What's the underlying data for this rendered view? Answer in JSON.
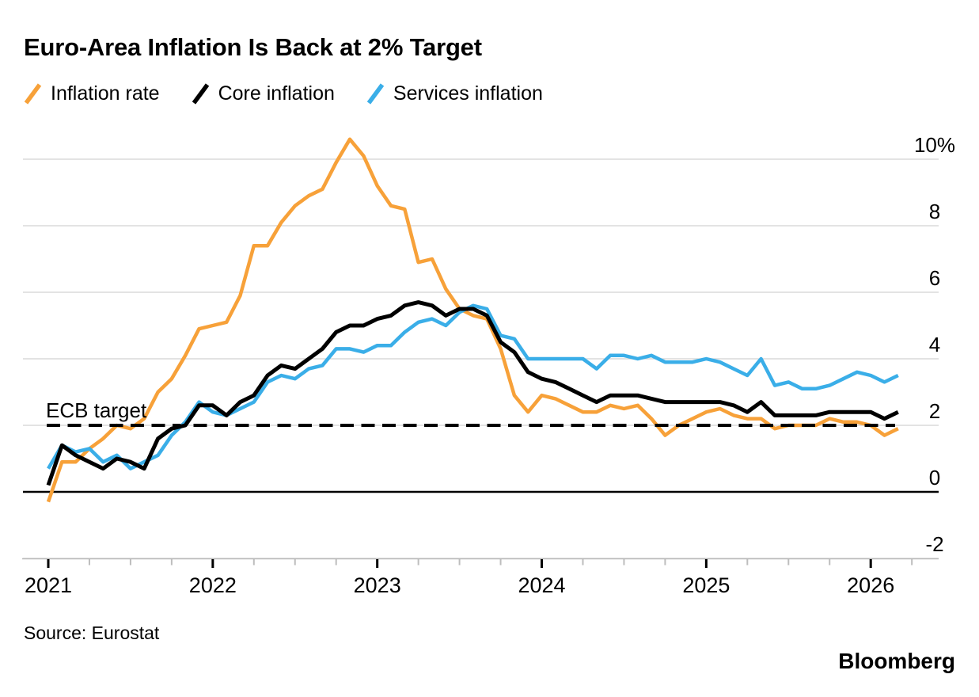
{
  "title": "Euro-Area Inflation Is Back at 2% Target",
  "legend": {
    "items": [
      {
        "label": "Inflation rate"
      },
      {
        "label": "Core inflation"
      },
      {
        "label": "Services inflation"
      }
    ]
  },
  "annotation": {
    "ecb_target_label": "ECB target"
  },
  "footer": {
    "source": "Source: Eurostat",
    "brand": "Bloomberg"
  },
  "chart_data": {
    "type": "line",
    "unit": "%",
    "title": "Euro-Area Inflation Is Back at 2% Target",
    "x_frequency": "monthly",
    "x_months_start": "2020-12",
    "x_months_end": "2026-02",
    "x_tick_years": [
      "2021",
      "2022",
      "2023",
      "2024",
      "2025",
      "2026"
    ],
    "ylim": [
      -2,
      10
    ],
    "grid": "horizontal",
    "legend_position": "top",
    "y_ticks": [
      {
        "value": 10,
        "label": "10%"
      },
      {
        "value": 8,
        "label": "8"
      },
      {
        "value": 6,
        "label": "6"
      },
      {
        "value": 4,
        "label": "4"
      },
      {
        "value": 2,
        "label": "2"
      },
      {
        "value": 0,
        "label": "0"
      },
      {
        "value": -2,
        "label": "-2"
      }
    ],
    "ecb_target": {
      "label": "ECB target",
      "value": 2,
      "line_style": "dashed",
      "color": "#000000"
    },
    "colors": {
      "inflation_rate": "#F7A139",
      "core_inflation": "#000000",
      "services_inflation": "#3AAEE8",
      "gridline": "#D2D2D2"
    },
    "series": [
      {
        "name": "Inflation rate",
        "color": "#F7A139",
        "values": [
          -0.3,
          0.9,
          0.9,
          1.3,
          1.6,
          2.0,
          1.9,
          2.2,
          3.0,
          3.4,
          4.1,
          4.9,
          5.0,
          5.1,
          5.9,
          7.4,
          7.4,
          8.1,
          8.6,
          8.9,
          9.1,
          9.9,
          10.6,
          10.1,
          9.2,
          8.6,
          8.5,
          6.9,
          7.0,
          6.1,
          5.5,
          5.3,
          5.2,
          4.3,
          2.9,
          2.4,
          2.9,
          2.8,
          2.6,
          2.4,
          2.4,
          2.6,
          2.5,
          2.6,
          2.2,
          1.7,
          2.0,
          2.2,
          2.4,
          2.5,
          2.3,
          2.2,
          2.2,
          1.9,
          2.0,
          2.0,
          2.0,
          2.2,
          2.1,
          2.1,
          2.0,
          1.7,
          1.9
        ]
      },
      {
        "name": "Core inflation",
        "color": "#000000",
        "values": [
          0.2,
          1.4,
          1.1,
          0.9,
          0.7,
          1.0,
          0.9,
          0.7,
          1.6,
          1.9,
          2.0,
          2.6,
          2.6,
          2.3,
          2.7,
          2.9,
          3.5,
          3.8,
          3.7,
          4.0,
          4.3,
          4.8,
          5.0,
          5.0,
          5.2,
          5.3,
          5.6,
          5.7,
          5.6,
          5.3,
          5.5,
          5.5,
          5.3,
          4.5,
          4.2,
          3.6,
          3.4,
          3.3,
          3.1,
          2.9,
          2.7,
          2.9,
          2.9,
          2.9,
          2.8,
          2.7,
          2.7,
          2.7,
          2.7,
          2.7,
          2.6,
          2.4,
          2.7,
          2.3,
          2.3,
          2.3,
          2.3,
          2.4,
          2.4,
          2.4,
          2.4,
          2.2,
          2.4
        ]
      },
      {
        "name": "Services inflation",
        "color": "#3AAEE8",
        "values": [
          0.7,
          1.4,
          1.2,
          1.3,
          0.9,
          1.1,
          0.7,
          0.9,
          1.1,
          1.7,
          2.1,
          2.7,
          2.4,
          2.3,
          2.5,
          2.7,
          3.3,
          3.5,
          3.4,
          3.7,
          3.8,
          4.3,
          4.3,
          4.2,
          4.4,
          4.4,
          4.8,
          5.1,
          5.2,
          5.0,
          5.4,
          5.6,
          5.5,
          4.7,
          4.6,
          4.0,
          4.0,
          4.0,
          4.0,
          4.0,
          3.7,
          4.1,
          4.1,
          4.0,
          4.1,
          3.9,
          3.9,
          3.9,
          4.0,
          3.9,
          3.7,
          3.5,
          4.0,
          3.2,
          3.3,
          3.1,
          3.1,
          3.2,
          3.4,
          3.6,
          3.5,
          3.3,
          3.5
        ]
      }
    ]
  }
}
